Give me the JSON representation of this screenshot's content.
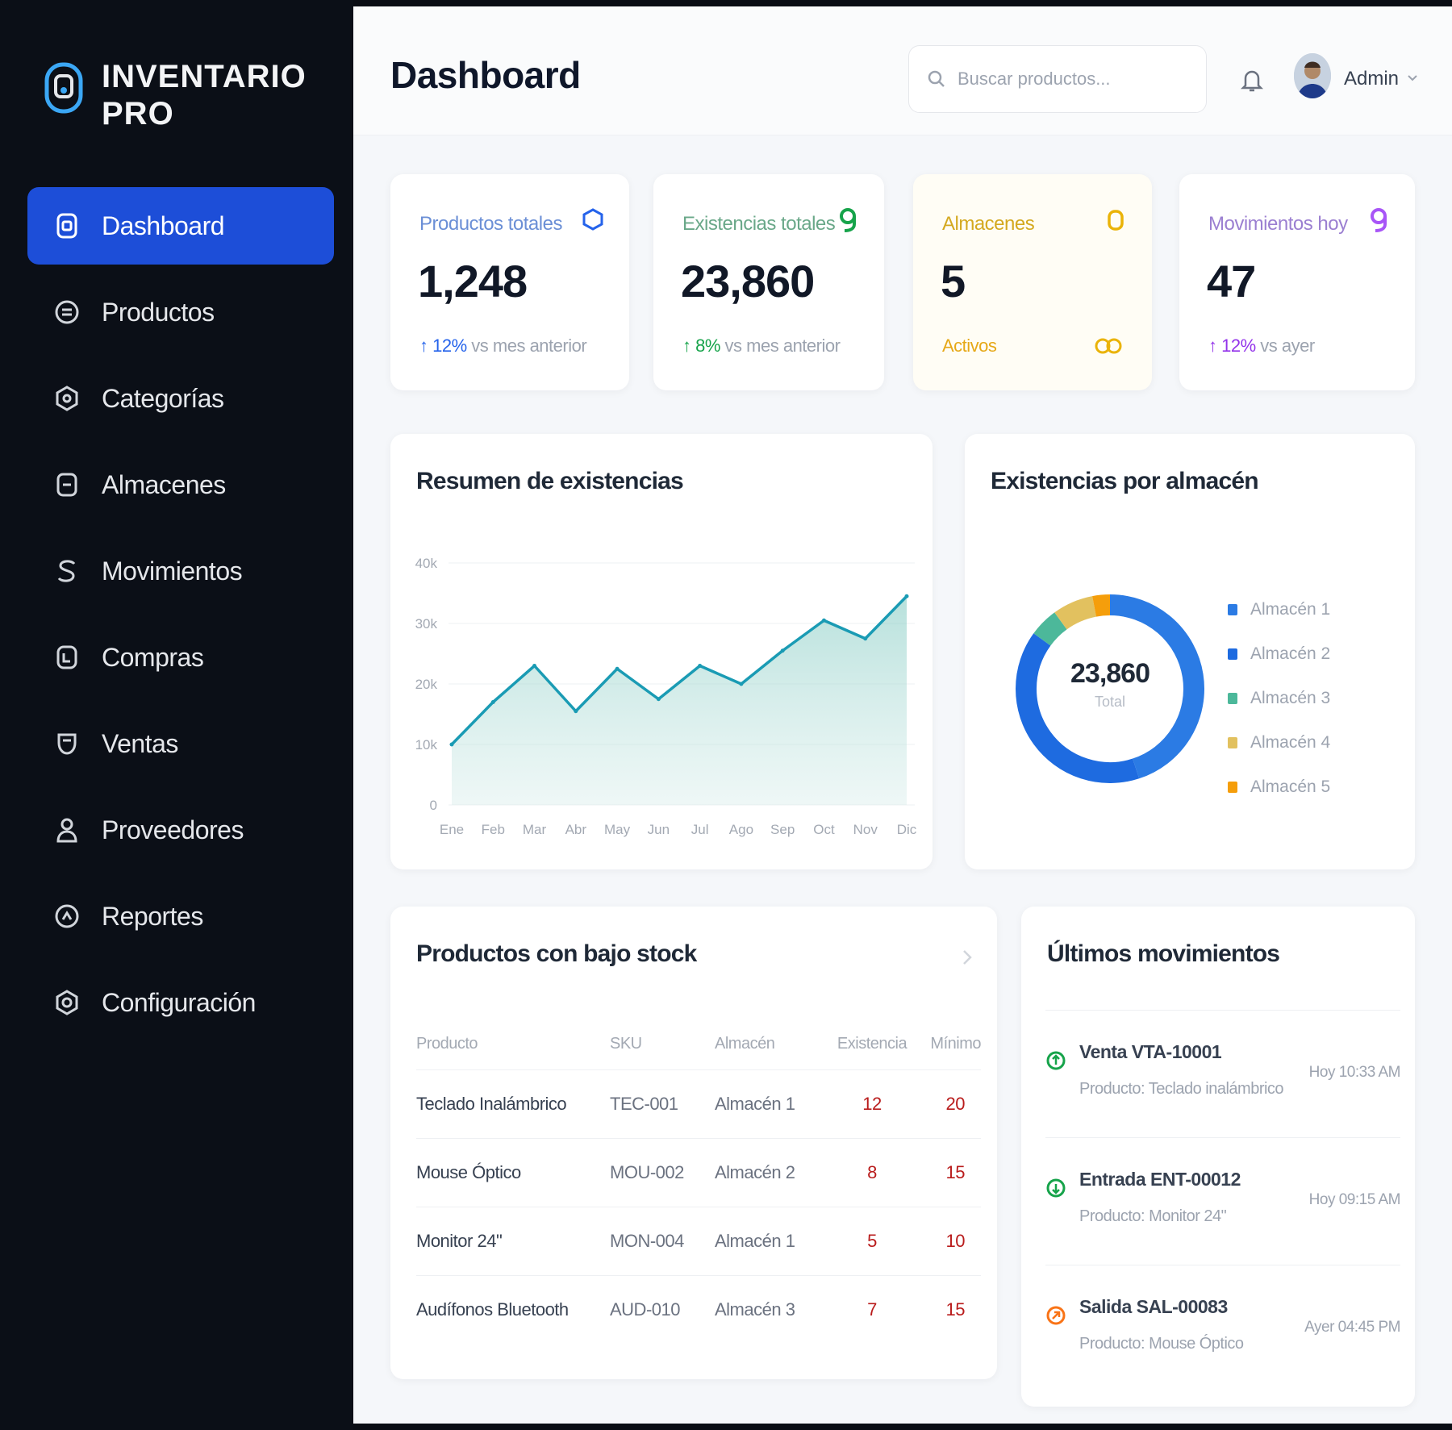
{
  "brand": {
    "line1": "INVENTARIO",
    "line2": "PRO"
  },
  "sidebar": {
    "items": [
      {
        "label": "Dashboard",
        "icon": "dashboard-icon",
        "active": true
      },
      {
        "label": "Productos",
        "icon": "box-icon"
      },
      {
        "label": "Categorías",
        "icon": "tag-icon"
      },
      {
        "label": "Almacenes",
        "icon": "warehouse-icon"
      },
      {
        "label": "Movimientos",
        "icon": "exchange-icon"
      },
      {
        "label": "Compras",
        "icon": "cart-icon"
      },
      {
        "label": "Ventas",
        "icon": "sales-icon"
      },
      {
        "label": "Proveedores",
        "icon": "supplier-icon"
      },
      {
        "label": "Reportes",
        "icon": "report-icon"
      },
      {
        "label": "Configuración",
        "icon": "gear-icon"
      }
    ]
  },
  "header": {
    "title": "Dashboard",
    "search_placeholder": "Buscar productos...",
    "user": "Admin"
  },
  "stats": [
    {
      "label": "Productos totales",
      "value": "1,248",
      "delta": "↑ 12%",
      "note": "vs mes anterior",
      "color": "#2563eb",
      "icon": "cube-icon"
    },
    {
      "label": "Existencias totales",
      "value": "23,860",
      "delta": "↑ 8%",
      "note": "vs mes anterior",
      "color": "#16a34a",
      "icon": "stack-icon"
    },
    {
      "label": "Almacenes",
      "value": "5",
      "delta": "Activos",
      "note": "",
      "color": "#eab308",
      "icon": "warehouse-icon"
    },
    {
      "label": "Movimientos hoy",
      "value": "47",
      "delta": "↑ 12%",
      "note": "vs ayer",
      "color": "#9333ea",
      "icon": "exchange-icon"
    }
  ],
  "colors": {
    "accent": "#1d4ed8",
    "line": "#1a9bb4",
    "low_stock": "#b91c1c"
  },
  "stock_chart": {
    "title": "Resumen de existencias"
  },
  "chart_data": [
    {
      "type": "area",
      "title": "Resumen de existencias",
      "categories": [
        "Ene",
        "Feb",
        "Mar",
        "Abr",
        "May",
        "Jun",
        "Jul",
        "Ago",
        "Sep",
        "Oct",
        "Nov",
        "Dic"
      ],
      "values": [
        10000,
        17000,
        23000,
        15500,
        22500,
        17500,
        23000,
        20000,
        25500,
        30500,
        27500,
        34500
      ],
      "ylim": [
        0,
        40000
      ],
      "yticks": [
        "0",
        "10k",
        "20k",
        "30k",
        "40k"
      ],
      "grid": true
    },
    {
      "type": "pie",
      "title": "Existencias por almacén",
      "center_value": "23,860",
      "center_label": "Total",
      "labels": [
        "Almacén 1",
        "Almacén 2",
        "Almacén 3",
        "Almacén 4",
        "Almacén 5"
      ],
      "values": [
        45,
        40,
        5,
        7,
        3
      ],
      "colors": [
        "#2b7be4",
        "#1e6be0",
        "#4cb89a",
        "#e2c15f",
        "#f59e0b"
      ],
      "legend": "right"
    }
  ],
  "low_stock": {
    "title": "Productos con bajo stock",
    "columns": [
      "Producto",
      "SKU",
      "Almacén",
      "Existencia",
      "Mínimo"
    ],
    "rows": [
      [
        "Teclado Inalámbrico",
        "TEC-001",
        "Almacén 1",
        "12",
        "20"
      ],
      [
        "Mouse Óptico",
        "MOU-002",
        "Almacén 2",
        "8",
        "15"
      ],
      [
        "Monitor 24\"",
        "MON-004",
        "Almacén 1",
        "5",
        "10"
      ],
      [
        "Audífonos Bluetooth",
        "AUD-010",
        "Almacén 3",
        "7",
        "15"
      ]
    ]
  },
  "movements": {
    "title": "Últimos movimientos",
    "items": [
      {
        "title": "Venta VTA-10001",
        "sub": "Producto: Teclado inalámbrico",
        "time": "Hoy 10:33 AM",
        "color": "#16a34a",
        "icon": "arrow-up-icon"
      },
      {
        "title": "Entrada ENT-00012",
        "sub": "Producto: Monitor 24\"",
        "time": "Hoy 09:15 AM",
        "color": "#16a34a",
        "icon": "arrow-down-icon"
      },
      {
        "title": "Salida SAL-00083",
        "sub": "Producto: Mouse Óptico",
        "time": "Ayer 04:45 PM",
        "color": "#f97316",
        "icon": "arrow-out-icon"
      }
    ]
  }
}
